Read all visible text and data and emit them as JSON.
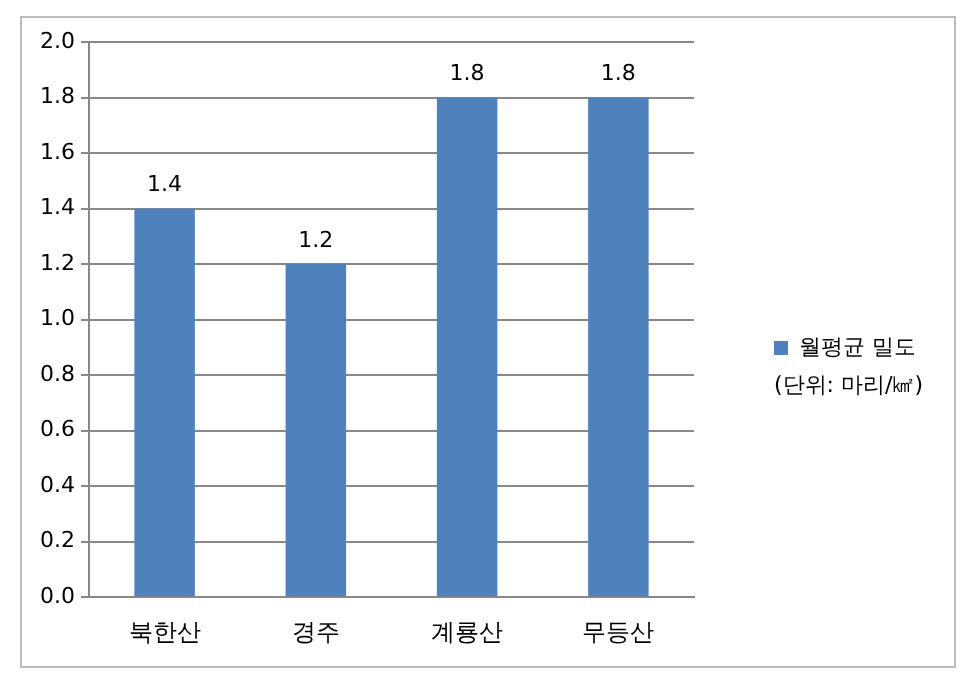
{
  "chart_data": {
    "type": "bar",
    "categories": [
      "북한산",
      "경주",
      "계룡산",
      "무등산"
    ],
    "series": [
      {
        "name": "월평균 밀도",
        "color": "#4f81bd",
        "values": [
          1.4,
          1.2,
          1.8,
          1.8
        ]
      }
    ],
    "ylim": [
      0,
      2.0
    ],
    "yticks": [
      {
        "value": 0,
        "label": "0.0"
      },
      {
        "value": 0.2,
        "label": "0.2"
      },
      {
        "value": 0.4,
        "label": "0.4"
      },
      {
        "value": 0.6,
        "label": "0.6"
      },
      {
        "value": 0.8,
        "label": "0.8"
      },
      {
        "value": 1.0,
        "label": "1.0"
      },
      {
        "value": 1.2,
        "label": "1.2"
      },
      {
        "value": 1.4,
        "label": "1.4"
      },
      {
        "value": 1.6,
        "label": "1.6"
      },
      {
        "value": 1.8,
        "label": "1.8"
      },
      {
        "value": 2.0,
        "label": "2.0"
      }
    ],
    "grid": "y",
    "legend": "right",
    "data_labels": true,
    "annotations": [
      "(단위: 마리/㎢)"
    ]
  }
}
